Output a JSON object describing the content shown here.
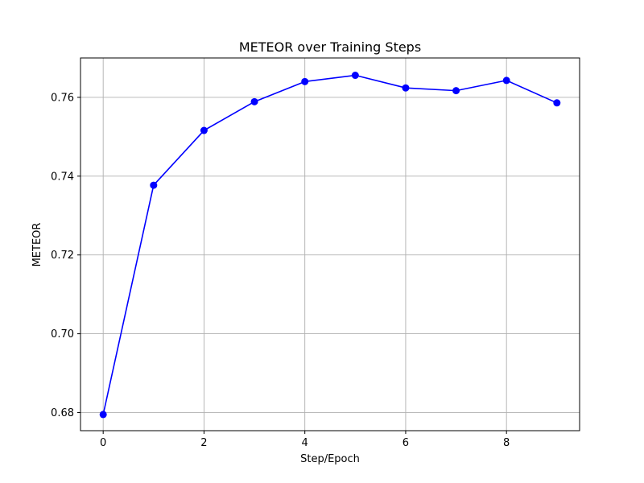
{
  "chart_data": {
    "type": "line",
    "title": "METEOR over Training Steps",
    "xlabel": "Step/Epoch",
    "ylabel": "METEOR",
    "xlim": [
      -0.45,
      9.45
    ],
    "ylim": [
      0.6754,
      0.77
    ],
    "xticks": [
      0,
      2,
      4,
      6,
      8
    ],
    "xtick_labels": [
      "0",
      "2",
      "4",
      "6",
      "8"
    ],
    "yticks": [
      0.68,
      0.7,
      0.72,
      0.74,
      0.76
    ],
    "ytick_labels": [
      "0.68",
      "0.70",
      "0.72",
      "0.74",
      "0.76"
    ],
    "grid": true,
    "legend": "none",
    "series": [
      {
        "color": "#0000ff",
        "marker": "circle",
        "x": [
          0,
          1,
          2,
          3,
          4,
          5,
          6,
          7,
          8,
          9
        ],
        "y": [
          0.6795,
          0.7377,
          0.7516,
          0.7589,
          0.764,
          0.7656,
          0.7624,
          0.7617,
          0.7643,
          0.7586
        ]
      }
    ]
  },
  "colors": {
    "line": "#0000ff",
    "grid": "#b0b0b0",
    "axes": "#000000",
    "background": "#ffffff"
  }
}
